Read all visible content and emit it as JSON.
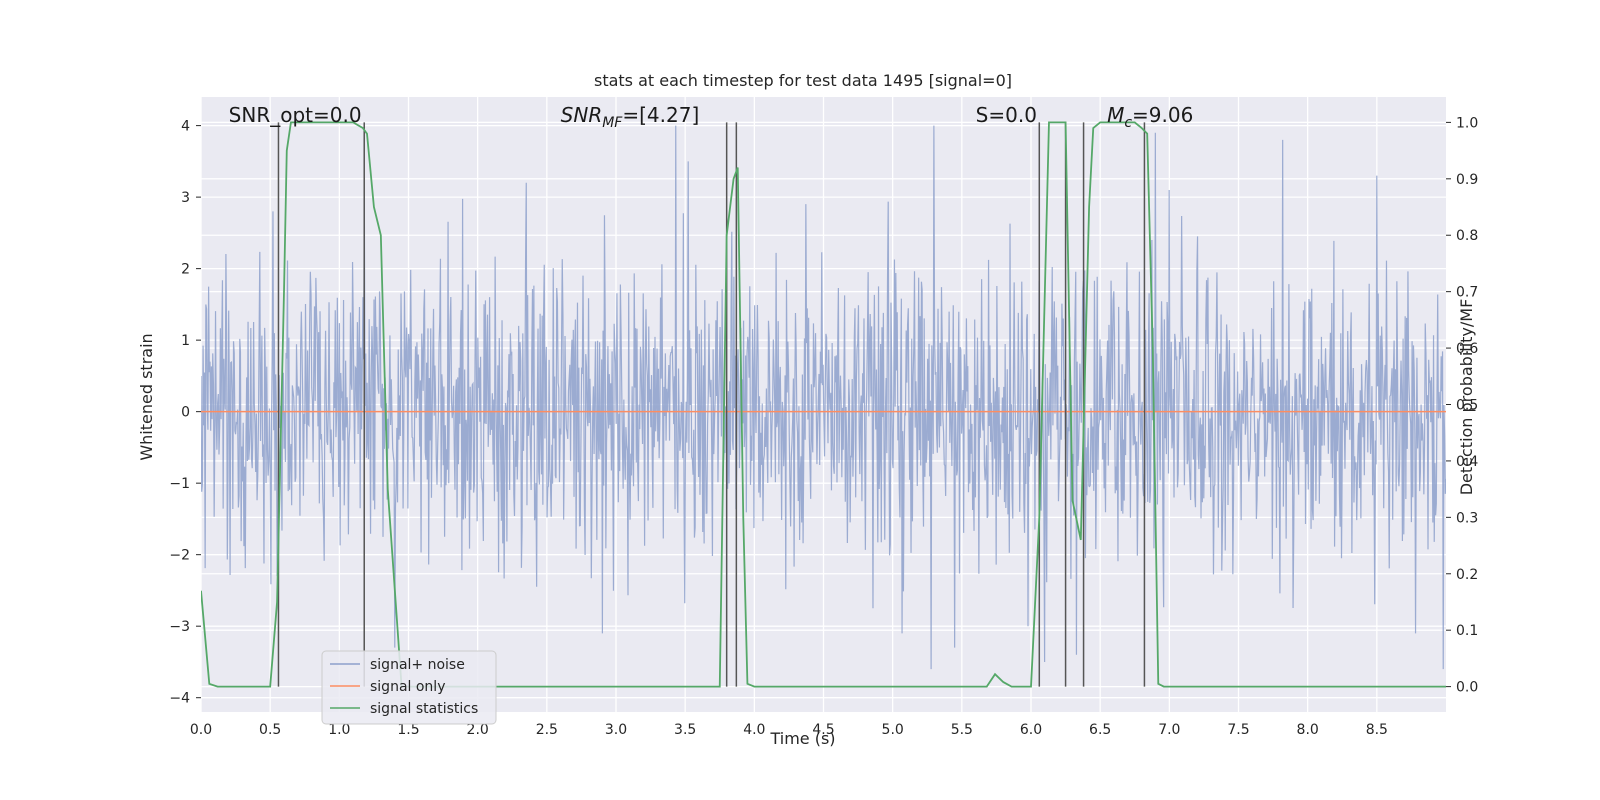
{
  "chart_data": {
    "type": "line",
    "title": "stats at each timestep for test data 1495 [signal=0]",
    "xlabel": "Time (s)",
    "ylabel": "Whitened strain",
    "y2label": "Detection probability/MF",
    "xlim": [
      0.0,
      9.0
    ],
    "ylim": [
      -4.2,
      4.4
    ],
    "y2lim": [
      -0.045,
      1.045
    ],
    "x_ticks": [
      0.0,
      0.5,
      1.0,
      1.5,
      2.0,
      2.5,
      3.0,
      3.5,
      4.0,
      4.5,
      5.0,
      5.5,
      6.0,
      6.5,
      7.0,
      7.5,
      8.0,
      8.5
    ],
    "x_tick_labels": [
      "0.0",
      "0.5",
      "1.0",
      "1.5",
      "2.0",
      "2.5",
      "3.0",
      "3.5",
      "4.0",
      "4.5",
      "5.0",
      "5.5",
      "6.0",
      "6.5",
      "7.0",
      "7.5",
      "8.0",
      "8.5"
    ],
    "y_ticks": [
      4,
      3,
      2,
      1,
      0,
      -1,
      -2,
      -3,
      -4
    ],
    "y_tick_labels": [
      "4",
      "3",
      "2",
      "1",
      "0",
      "−1",
      "−2",
      "−3",
      "−4"
    ],
    "y2_ticks": [
      1.0,
      0.9,
      0.8,
      0.7,
      0.6,
      0.5,
      0.4,
      0.3,
      0.2,
      0.1,
      0.0
    ],
    "y2_tick_labels": [
      "1.0",
      "0.9",
      "0.8",
      "0.7",
      "0.6",
      "0.5",
      "0.4",
      "0.3",
      "0.2",
      "0.1",
      "0.0"
    ],
    "grid": true,
    "legend_position": "lower-left",
    "series": [
      {
        "name": "signal+ noise",
        "color": "#8da0cb",
        "kind": "noise",
        "x_range": [
          0.0,
          9.0
        ],
        "typical_range": [
          -2.1,
          2.2
        ],
        "peak_values": [
          {
            "x": 0.52,
            "y": 2.8
          },
          {
            "x": 0.55,
            "y": -2.3
          },
          {
            "x": 1.18,
            "y": 3.0
          },
          {
            "x": 1.4,
            "y": -3.3
          },
          {
            "x": 2.35,
            "y": 3.2
          },
          {
            "x": 2.9,
            "y": -3.1
          },
          {
            "x": 3.43,
            "y": 4.0
          },
          {
            "x": 3.52,
            "y": 3.5
          },
          {
            "x": 5.07,
            "y": -3.1
          },
          {
            "x": 5.28,
            "y": -3.6
          },
          {
            "x": 5.3,
            "y": 4.0
          },
          {
            "x": 5.45,
            "y": -3.3
          },
          {
            "x": 6.1,
            "y": -3.5
          },
          {
            "x": 6.33,
            "y": -3.4
          },
          {
            "x": 6.9,
            "y": 3.9
          },
          {
            "x": 7.0,
            "y": 3.1
          },
          {
            "x": 7.82,
            "y": 3.8
          },
          {
            "x": 8.5,
            "y": 3.3
          },
          {
            "x": 8.78,
            "y": -3.1
          },
          {
            "x": 8.98,
            "y": -3.6
          }
        ]
      },
      {
        "name": "signal only",
        "color": "#fc8d62",
        "x": [
          0.0,
          9.0
        ],
        "y": [
          0.0,
          0.0
        ]
      },
      {
        "name": "signal statistics",
        "color": "#55a868",
        "axis": "right",
        "x": [
          0.0,
          0.06,
          0.12,
          0.5,
          0.55,
          0.6,
          0.62,
          0.65,
          1.1,
          1.17,
          1.2,
          1.25,
          1.3,
          1.35,
          1.45,
          3.75,
          3.8,
          3.85,
          3.88,
          3.92,
          3.95,
          4.0,
          5.68,
          5.74,
          5.8,
          5.86,
          6.0,
          6.06,
          6.11,
          6.13,
          6.25,
          6.3,
          6.36,
          6.42,
          6.45,
          6.5,
          6.75,
          6.8,
          6.84,
          6.88,
          6.92,
          6.96,
          9.0
        ],
        "y": [
          0.17,
          0.005,
          0.0,
          0.0,
          0.15,
          0.7,
          0.95,
          1.0,
          1.0,
          0.99,
          0.98,
          0.85,
          0.8,
          0.35,
          0.0,
          0.0,
          0.8,
          0.9,
          0.92,
          0.3,
          0.005,
          0.0,
          0.0,
          0.022,
          0.008,
          0.0,
          0.0,
          0.3,
          0.8,
          1.0,
          1.0,
          0.33,
          0.26,
          0.85,
          0.99,
          1.0,
          1.0,
          0.99,
          0.98,
          0.6,
          0.005,
          0.0,
          0.0
        ]
      }
    ],
    "vertical_lines": [
      0.56,
      1.18,
      3.8,
      3.87,
      6.06,
      6.25,
      6.38,
      6.82
    ],
    "vertical_line_color": "#555555",
    "annotations": [
      {
        "text": "SNR_opt=0.0",
        "x": 0.2,
        "y": 4.05
      },
      {
        "text": "SNR_MF=[4.27]",
        "x": 2.6,
        "y": 4.05
      },
      {
        "text": "S=0.0",
        "x": 5.6,
        "y": 4.05
      },
      {
        "text": "M_c=9.06",
        "x": 6.55,
        "y": 4.05
      }
    ]
  }
}
